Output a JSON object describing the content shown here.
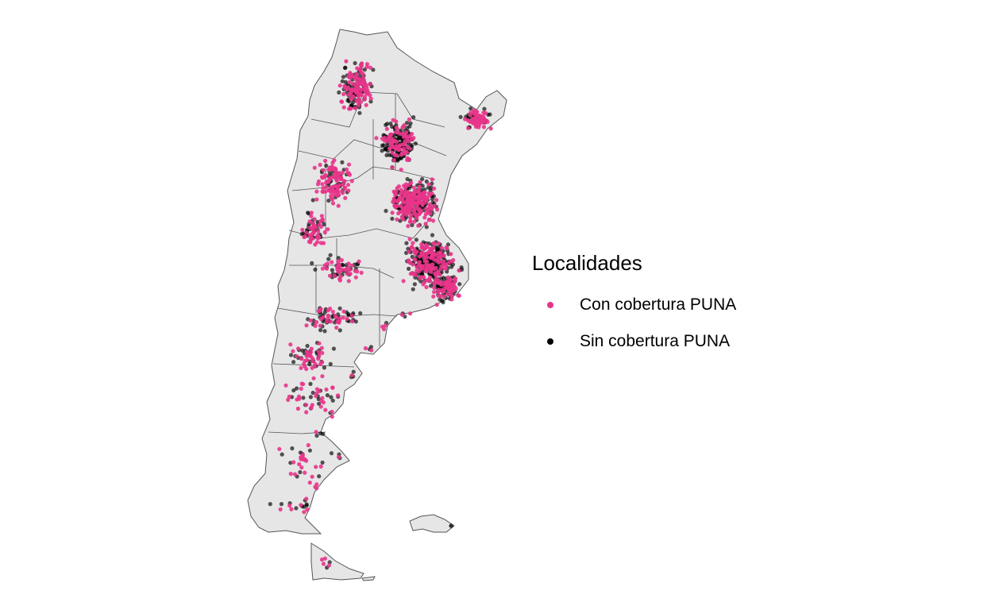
{
  "legend": {
    "title": "Localidades",
    "items": [
      {
        "label": "Con cobertura PUNA",
        "color": "#E8348A"
      },
      {
        "label": "Sin cobertura PUNA",
        "color": "#000000"
      }
    ]
  },
  "map": {
    "land_fill": "#E6E6E6",
    "border_color": "#555555"
  }
}
